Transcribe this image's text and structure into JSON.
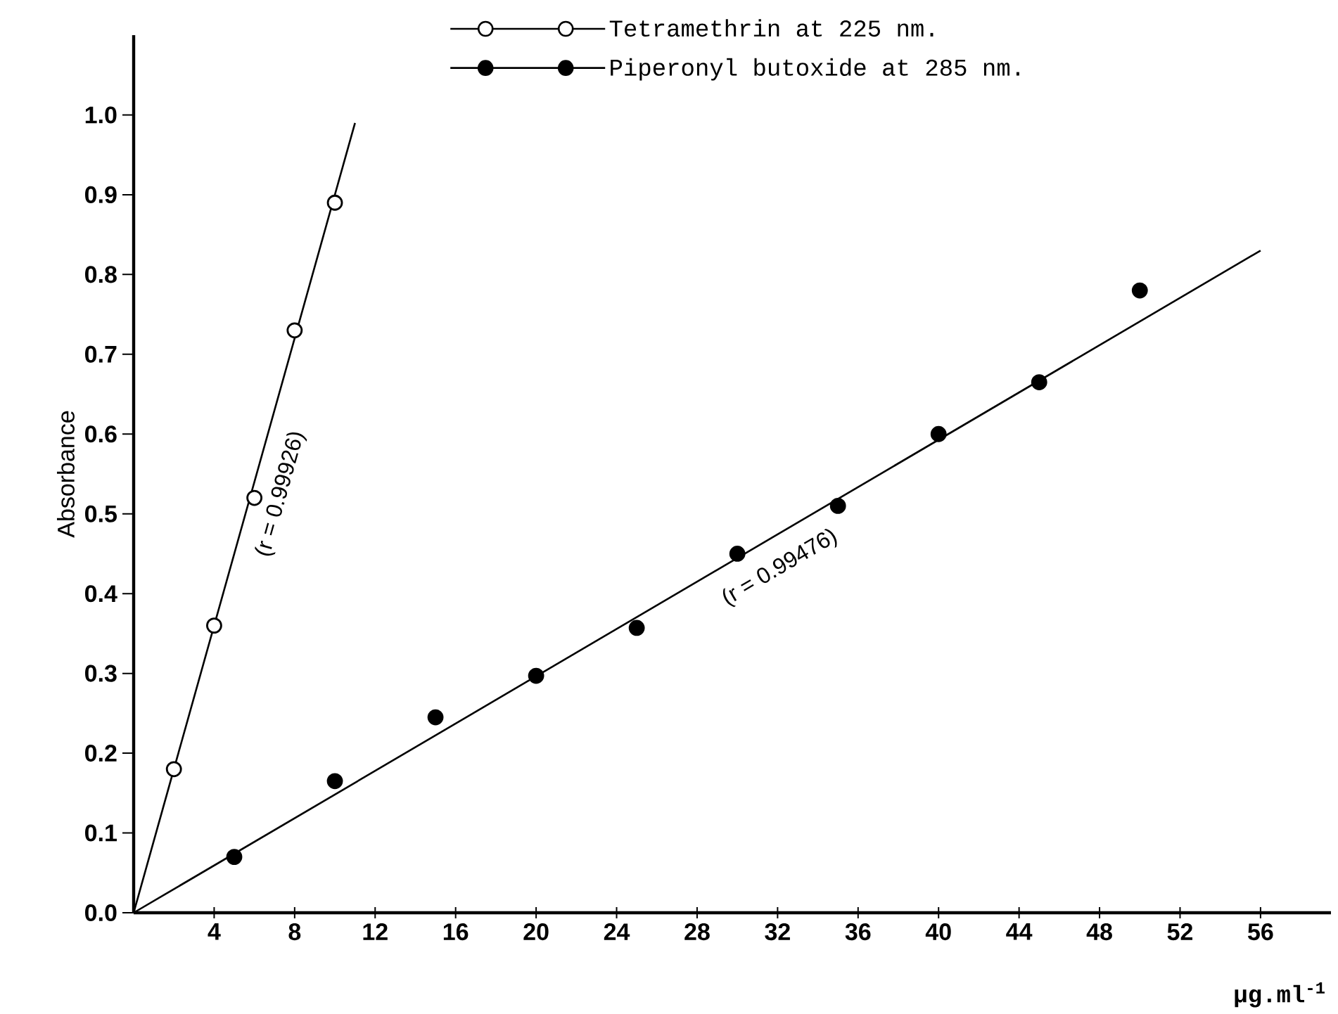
{
  "chart_data": {
    "type": "scatter",
    "xlabel": "µg.ml$^{-1}$",
    "ylabel": "Absorbance",
    "legend": "top right",
    "xlim": [
      0,
      59.5
    ],
    "ylim": [
      0,
      1.1
    ],
    "xticks": [
      4,
      8,
      12,
      16,
      20,
      24,
      28,
      32,
      36,
      40,
      44,
      48,
      52,
      56
    ],
    "yticks": [
      {
        "value": 0,
        "label": "0.0"
      },
      {
        "value": 0.1,
        "label": "0.1"
      },
      {
        "value": 0.2,
        "label": "0.2"
      },
      {
        "value": 0.3,
        "label": "0.3"
      },
      {
        "value": 0.4,
        "label": "0.4"
      },
      {
        "value": 0.5,
        "label": "0.5"
      },
      {
        "value": 0.6,
        "label": "0.6"
      },
      {
        "value": 0.7,
        "label": "0.7"
      },
      {
        "value": 0.8,
        "label": "0.8"
      },
      {
        "value": 0.9,
        "label": "0.9"
      },
      {
        "value": 1.0,
        "label": "1.0"
      }
    ],
    "series": [
      {
        "name": "Tetramethrin at 225 nm.",
        "color": "#000000",
        "marker": "circle",
        "x": [
          2,
          4,
          6,
          8,
          10
        ],
        "values": [
          0.18,
          0.36,
          0.52,
          0.73,
          0.89
        ]
      },
      {
        "name": "Piperonyl butoxide at 285 nm.",
        "color": "#000000",
        "marker": "circle",
        "x": [
          5,
          10,
          15,
          20,
          25,
          30,
          35,
          40,
          45,
          50
        ],
        "values": [
          0.07,
          0.165,
          0.245,
          0.297,
          0.357,
          0.45,
          0.51,
          0.6,
          0.665,
          0.78
        ]
      },
      {
        "type": "line",
        "color": "#000000",
        "x": [
          0,
          11
        ],
        "values": [
          0,
          0.99
        ]
      },
      {
        "type": "line",
        "color": "#000000",
        "x": [
          0,
          56
        ],
        "values": [
          0,
          0.83
        ]
      }
    ],
    "annotations": [
      "(r = 0.99926)",
      "(r = 0.99476)"
    ]
  }
}
